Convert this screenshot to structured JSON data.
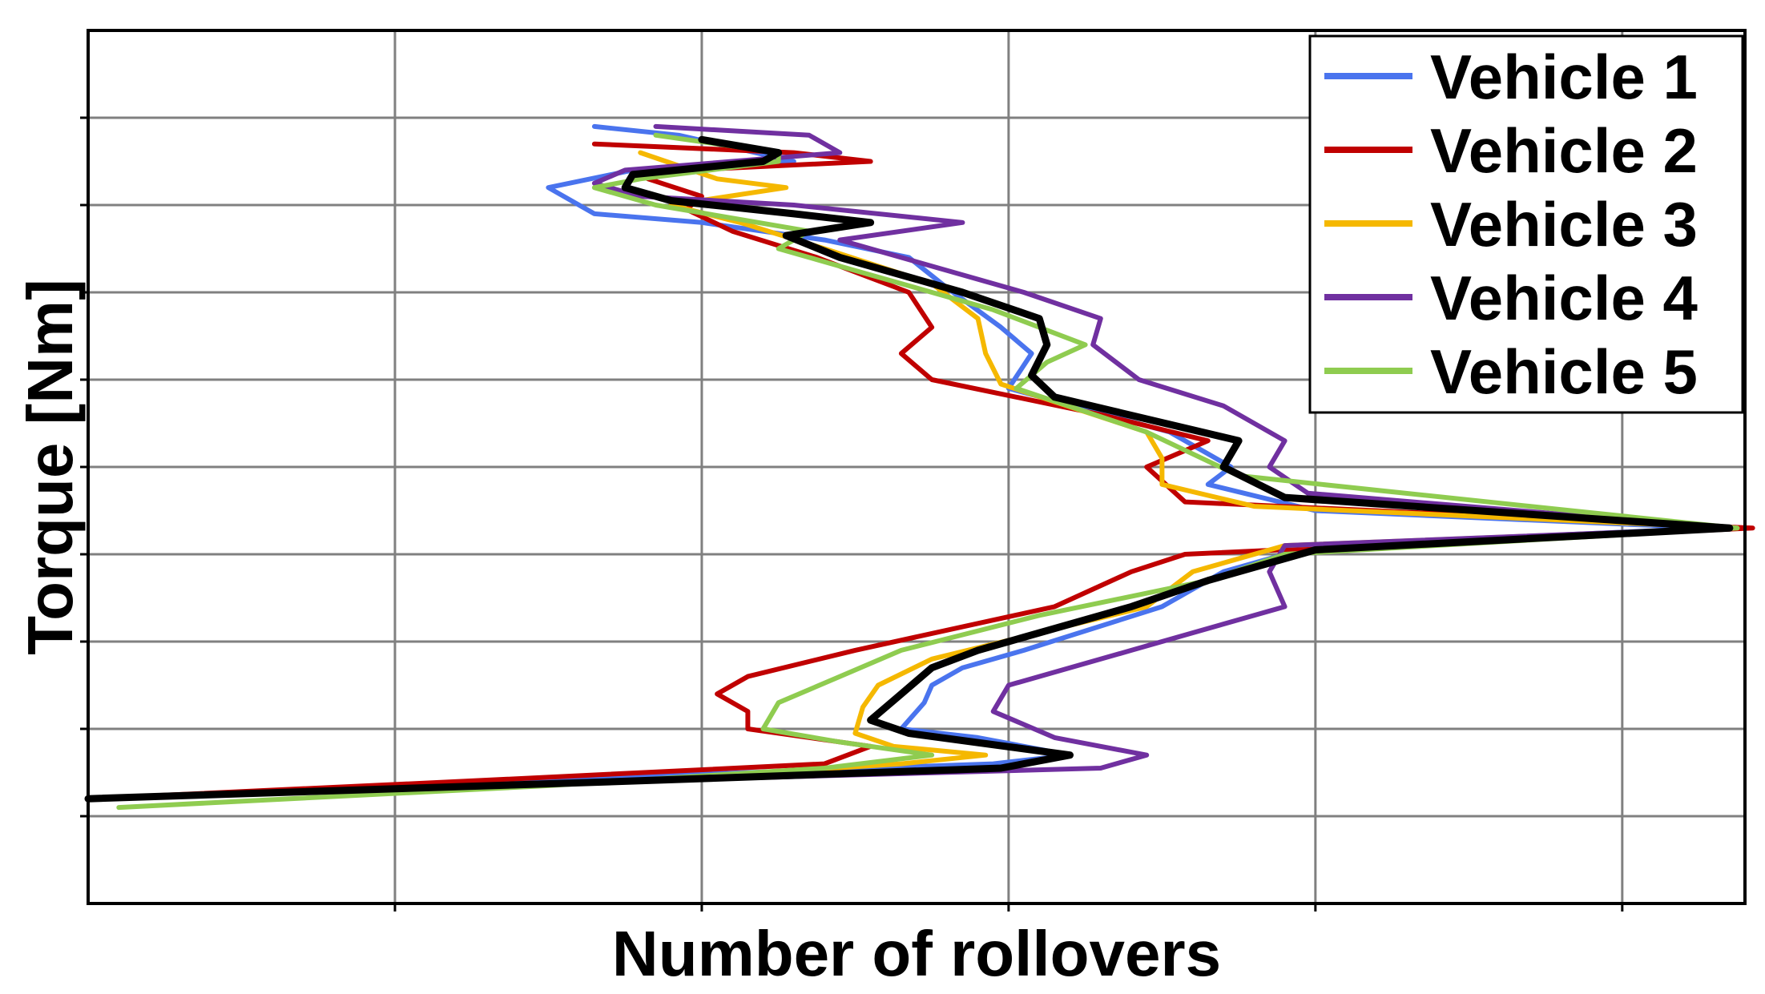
{
  "chart_data": {
    "type": "line",
    "title": "",
    "xlabel": "Number of rollovers",
    "ylabel": "Torque [Nm]",
    "xlim": [
      0,
      10.8
    ],
    "ylim": [
      0,
      10
    ],
    "grid": true,
    "tick_labels_shown": false,
    "legend": {
      "placement": "top-right",
      "entries": [
        "Vehicle 1",
        "Vehicle 2",
        "Vehicle 3",
        "Vehicle 4",
        "Vehicle 5"
      ]
    },
    "series": [
      {
        "name": "Vehicle 1",
        "color": "#4a74ee",
        "points": [
          [
            3.3,
            8.9
          ],
          [
            3.85,
            8.8
          ],
          [
            4.6,
            8.5
          ],
          [
            3.55,
            8.4
          ],
          [
            3.0,
            8.2
          ],
          [
            3.3,
            7.9
          ],
          [
            4.0,
            7.8
          ],
          [
            4.8,
            7.6
          ],
          [
            5.35,
            7.4
          ],
          [
            5.6,
            7.05
          ],
          [
            5.95,
            6.6
          ],
          [
            6.15,
            6.3
          ],
          [
            6.0,
            5.9
          ],
          [
            7.05,
            5.4
          ],
          [
            7.45,
            5.0
          ],
          [
            7.3,
            4.8
          ],
          [
            8.0,
            4.5
          ],
          [
            10.6,
            4.3
          ],
          [
            8.0,
            4.1
          ],
          [
            7.4,
            3.8
          ],
          [
            7.0,
            3.4
          ],
          [
            6.1,
            2.9
          ],
          [
            5.7,
            2.7
          ],
          [
            5.5,
            2.5
          ],
          [
            5.45,
            2.3
          ],
          [
            5.3,
            2.0
          ],
          [
            5.8,
            1.9
          ],
          [
            6.4,
            1.7
          ],
          [
            5.9,
            1.6
          ],
          [
            3.5,
            1.45
          ],
          [
            0.0,
            1.2
          ]
        ]
      },
      {
        "name": "Vehicle 2",
        "color": "#c00000",
        "points": [
          [
            3.3,
            8.7
          ],
          [
            4.6,
            8.6
          ],
          [
            5.1,
            8.5
          ],
          [
            3.9,
            8.4
          ],
          [
            3.65,
            8.3
          ],
          [
            4.0,
            8.1
          ],
          [
            3.9,
            7.95
          ],
          [
            4.2,
            7.7
          ],
          [
            4.75,
            7.4
          ],
          [
            5.35,
            7.0
          ],
          [
            5.5,
            6.6
          ],
          [
            5.3,
            6.3
          ],
          [
            5.5,
            6.0
          ],
          [
            6.6,
            5.6
          ],
          [
            7.3,
            5.3
          ],
          [
            6.9,
            5.0
          ],
          [
            7.15,
            4.6
          ],
          [
            10.85,
            4.3
          ],
          [
            7.15,
            4.0
          ],
          [
            6.8,
            3.8
          ],
          [
            6.3,
            3.4
          ],
          [
            5.0,
            2.9
          ],
          [
            4.3,
            2.6
          ],
          [
            4.1,
            2.4
          ],
          [
            4.3,
            2.2
          ],
          [
            4.3,
            2.0
          ],
          [
            5.1,
            1.8
          ],
          [
            4.8,
            1.6
          ],
          [
            2.45,
            1.4
          ],
          [
            0.0,
            1.2
          ]
        ]
      },
      {
        "name": "Vehicle 3",
        "color": "#f5b800",
        "points": [
          [
            3.6,
            8.6
          ],
          [
            4.1,
            8.3
          ],
          [
            4.55,
            8.2
          ],
          [
            3.8,
            8.0
          ],
          [
            4.25,
            7.8
          ],
          [
            4.8,
            7.5
          ],
          [
            5.5,
            7.1
          ],
          [
            5.8,
            6.7
          ],
          [
            5.85,
            6.3
          ],
          [
            5.95,
            5.95
          ],
          [
            6.9,
            5.4
          ],
          [
            7.0,
            5.1
          ],
          [
            7.0,
            4.8
          ],
          [
            7.6,
            4.55
          ],
          [
            10.75,
            4.3
          ],
          [
            7.8,
            4.1
          ],
          [
            7.2,
            3.8
          ],
          [
            6.9,
            3.4
          ],
          [
            5.5,
            2.8
          ],
          [
            5.15,
            2.5
          ],
          [
            5.05,
            2.25
          ],
          [
            5.0,
            1.95
          ],
          [
            5.25,
            1.8
          ],
          [
            5.85,
            1.7
          ],
          [
            5.3,
            1.6
          ],
          [
            3.5,
            1.4
          ],
          [
            0.0,
            1.2
          ]
        ]
      },
      {
        "name": "Vehicle 4",
        "color": "#7030a0",
        "points": [
          [
            3.7,
            8.9
          ],
          [
            4.7,
            8.8
          ],
          [
            4.9,
            8.6
          ],
          [
            3.5,
            8.4
          ],
          [
            3.3,
            8.25
          ],
          [
            3.6,
            8.1
          ],
          [
            4.6,
            8.0
          ],
          [
            5.7,
            7.8
          ],
          [
            4.9,
            7.6
          ],
          [
            5.4,
            7.35
          ],
          [
            6.1,
            7.0
          ],
          [
            6.6,
            6.7
          ],
          [
            6.55,
            6.4
          ],
          [
            6.85,
            6.0
          ],
          [
            7.4,
            5.7
          ],
          [
            7.8,
            5.3
          ],
          [
            7.7,
            5.0
          ],
          [
            7.95,
            4.7
          ],
          [
            10.7,
            4.3
          ],
          [
            7.8,
            4.1
          ],
          [
            7.7,
            3.8
          ],
          [
            7.8,
            3.4
          ],
          [
            6.8,
            2.9
          ],
          [
            6.0,
            2.5
          ],
          [
            5.9,
            2.2
          ],
          [
            6.3,
            1.9
          ],
          [
            6.9,
            1.7
          ],
          [
            6.6,
            1.55
          ],
          [
            3.5,
            1.4
          ],
          [
            0.0,
            1.2
          ]
        ]
      },
      {
        "name": "Vehicle 5",
        "color": "#8fcc50",
        "points": [
          [
            3.7,
            8.8
          ],
          [
            4.5,
            8.6
          ],
          [
            4.5,
            8.5
          ],
          [
            3.6,
            8.3
          ],
          [
            3.3,
            8.2
          ],
          [
            3.7,
            8.0
          ],
          [
            4.7,
            7.7
          ],
          [
            4.5,
            7.5
          ],
          [
            5.1,
            7.2
          ],
          [
            5.9,
            6.8
          ],
          [
            6.5,
            6.4
          ],
          [
            6.25,
            6.2
          ],
          [
            6.05,
            5.9
          ],
          [
            6.9,
            5.4
          ],
          [
            7.5,
            4.9
          ],
          [
            10.75,
            4.3
          ],
          [
            7.8,
            4.0
          ],
          [
            7.3,
            3.7
          ],
          [
            6.2,
            3.3
          ],
          [
            5.3,
            2.9
          ],
          [
            4.9,
            2.6
          ],
          [
            4.5,
            2.3
          ],
          [
            4.4,
            2.0
          ],
          [
            4.9,
            1.85
          ],
          [
            5.5,
            1.7
          ],
          [
            4.8,
            1.55
          ],
          [
            3.0,
            1.35
          ],
          [
            0.2,
            1.1
          ]
        ]
      },
      {
        "name": "",
        "color": "#000000",
        "points": [
          [
            4.0,
            8.75
          ],
          [
            4.5,
            8.6
          ],
          [
            4.4,
            8.5
          ],
          [
            3.55,
            8.35
          ],
          [
            3.5,
            8.2
          ],
          [
            3.8,
            8.05
          ],
          [
            4.6,
            7.9
          ],
          [
            5.1,
            7.8
          ],
          [
            4.55,
            7.65
          ],
          [
            4.9,
            7.4
          ],
          [
            5.7,
            7.0
          ],
          [
            6.2,
            6.7
          ],
          [
            6.25,
            6.4
          ],
          [
            6.15,
            6.05
          ],
          [
            6.3,
            5.8
          ],
          [
            7.5,
            5.3
          ],
          [
            7.4,
            5.0
          ],
          [
            7.8,
            4.65
          ],
          [
            10.7,
            4.3
          ],
          [
            8.0,
            4.05
          ],
          [
            7.3,
            3.7
          ],
          [
            6.8,
            3.4
          ],
          [
            5.8,
            2.9
          ],
          [
            5.5,
            2.7
          ],
          [
            5.3,
            2.4
          ],
          [
            5.1,
            2.1
          ],
          [
            5.35,
            1.95
          ],
          [
            6.4,
            1.7
          ],
          [
            5.95,
            1.55
          ],
          [
            3.5,
            1.4
          ],
          [
            0.0,
            1.2
          ]
        ]
      }
    ]
  }
}
